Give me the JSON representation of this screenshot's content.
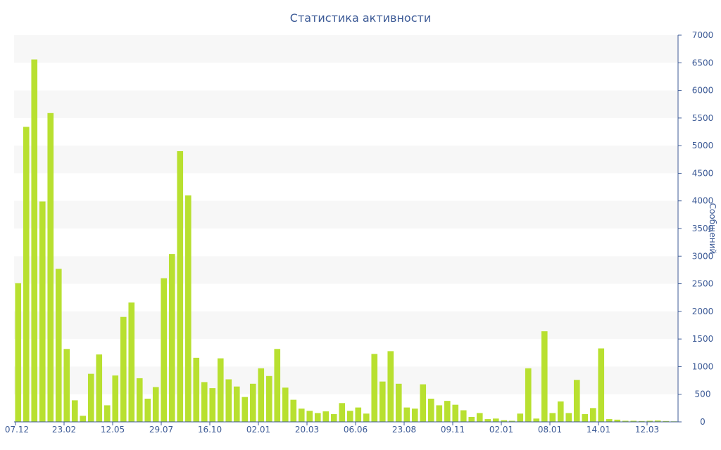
{
  "chart_data": {
    "type": "bar",
    "title": "Статистика активности",
    "xlabel": "",
    "ylabel": "Сообщений",
    "ylim": [
      0,
      7000
    ],
    "y_axis_side": "right",
    "y_ticks": [
      0,
      500,
      1000,
      1500,
      2000,
      2500,
      3000,
      3500,
      4000,
      4500,
      5000,
      5500,
      6000,
      6500,
      7000
    ],
    "grid": "alternating horizontal bands",
    "bar_color": "#b8e030",
    "axis_color": "#3c5a96",
    "band_color": "#f7f7f7",
    "x_tick_labels": [
      {
        "index": 0,
        "label": "07.12"
      },
      {
        "index": 6,
        "label": "23.02"
      },
      {
        "index": 12,
        "label": "12.05"
      },
      {
        "index": 18,
        "label": "29.07"
      },
      {
        "index": 24,
        "label": "16.10"
      },
      {
        "index": 30,
        "label": "02.01"
      },
      {
        "index": 36,
        "label": "20.03"
      },
      {
        "index": 42,
        "label": "06.06"
      },
      {
        "index": 48,
        "label": "23.08"
      },
      {
        "index": 54,
        "label": "09.11"
      },
      {
        "index": 60,
        "label": "02.01"
      },
      {
        "index": 66,
        "label": "08.01"
      },
      {
        "index": 72,
        "label": "14.01"
      },
      {
        "index": 78,
        "label": "12.03"
      }
    ],
    "values": [
      2510,
      5340,
      6560,
      3990,
      5590,
      2770,
      1320,
      390,
      110,
      870,
      1220,
      300,
      840,
      1900,
      2160,
      790,
      420,
      630,
      2600,
      3040,
      4900,
      4100,
      1160,
      720,
      610,
      1150,
      770,
      640,
      450,
      690,
      970,
      830,
      1320,
      620,
      400,
      240,
      200,
      160,
      190,
      140,
      340,
      200,
      260,
      150,
      1230,
      730,
      1280,
      690,
      260,
      240,
      680,
      420,
      300,
      380,
      310,
      210,
      90,
      160,
      50,
      60,
      30,
      20,
      150,
      970,
      60,
      1640,
      160,
      370,
      160,
      760,
      140,
      250,
      1330,
      50,
      40,
      20,
      20,
      15,
      20,
      25,
      15,
      10
    ]
  }
}
